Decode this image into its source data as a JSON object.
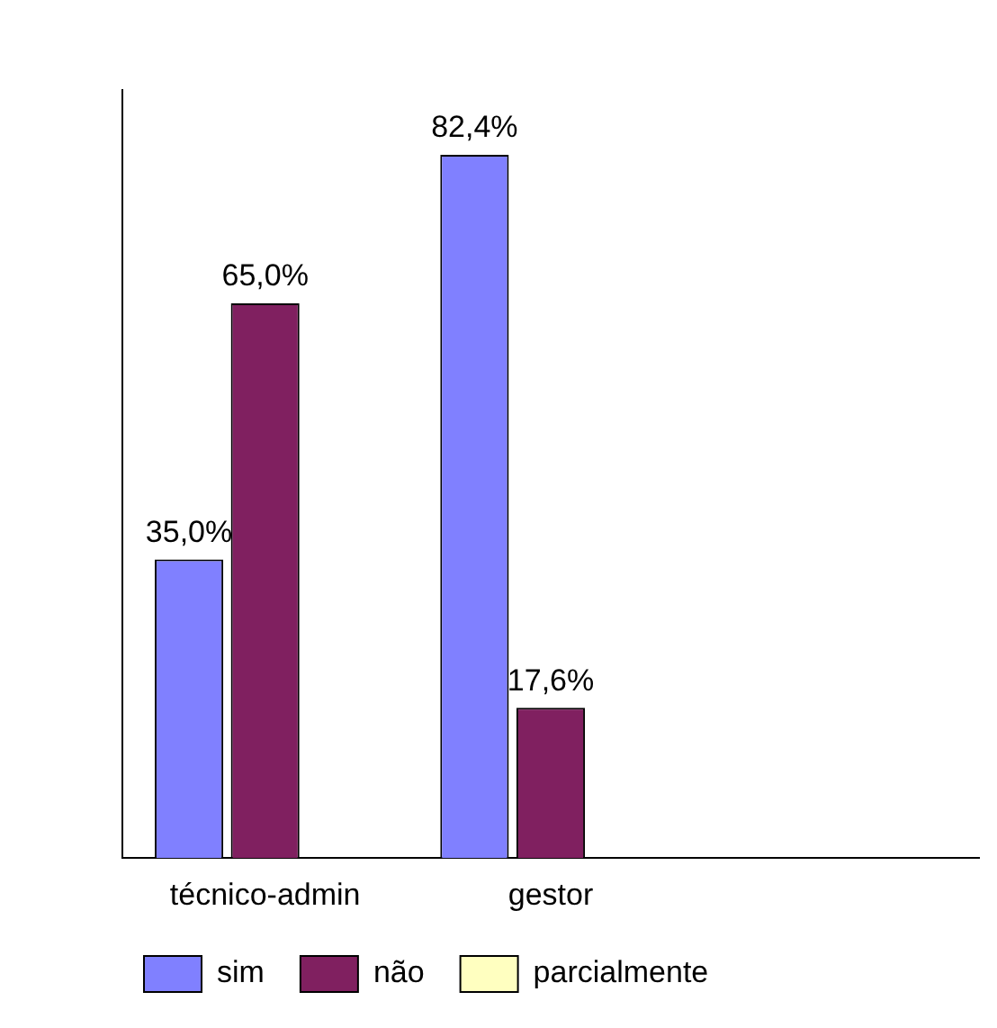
{
  "chart_data": {
    "type": "bar",
    "categories": [
      "técnico-admin",
      "gestor",
      null
    ],
    "series": [
      {
        "name": "sim",
        "color": "#8080ff",
        "values": [
          35.0,
          82.4,
          null
        ],
        "value_labels": [
          "35,0%",
          "82,4%",
          null
        ]
      },
      {
        "name": "não",
        "color": "#802060",
        "values": [
          65.0,
          17.6,
          null
        ],
        "value_labels": [
          "65,0%",
          "17,6%",
          null
        ]
      },
      {
        "name": "parcialmente",
        "color": "#ffffc0",
        "values": [
          null,
          null,
          null
        ],
        "value_labels": [
          null,
          null,
          null
        ]
      }
    ],
    "legend": "bottom",
    "grid": false,
    "tick_labels": "x"
  }
}
